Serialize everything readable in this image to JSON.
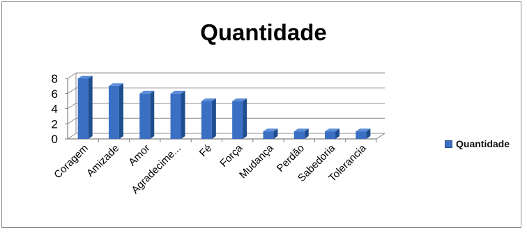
{
  "chart_data": {
    "type": "bar",
    "title": "Quantidade",
    "categories": [
      "Coragem",
      "Amizade",
      "Amor",
      "Agradecime...",
      "Fé",
      "Força",
      "Mudança",
      "Perdão",
      "Sabedoria",
      "Tolerancia"
    ],
    "series": [
      {
        "name": "Quantidade",
        "values": [
          8,
          7,
          6,
          6,
          5,
          5,
          1,
          1,
          1,
          1
        ],
        "color": "#3a6fc4"
      }
    ],
    "ylim": [
      0,
      8
    ],
    "yticks": [
      0,
      2,
      4,
      6,
      8
    ],
    "grid": true,
    "legend_position": "right",
    "style": "3d-column"
  }
}
